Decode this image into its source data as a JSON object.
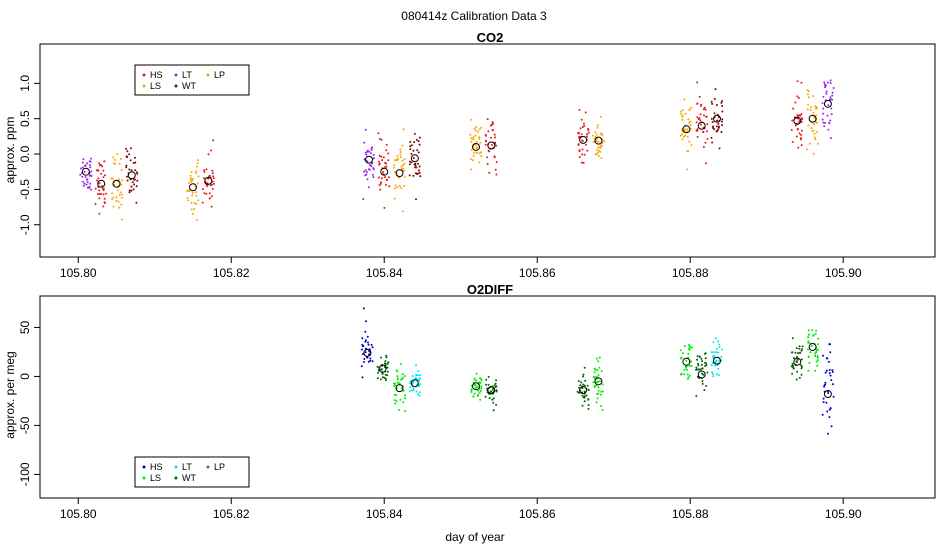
{
  "figure": {
    "title": "080414z   Calibration Data 3",
    "xlabel": "day of year"
  },
  "colors": {
    "HS": "#e41a1c",
    "LS": "#ffa500",
    "LT": "#a020f0",
    "WT": "#8b0000",
    "LP": "#ffa500",
    "O2_HS": "#0000cd",
    "O2_LS": "#00ee00",
    "O2_LT": "#00e5ee",
    "O2_WT": "#006400",
    "O2_LP": "#2e8b57"
  },
  "chart_data": [
    {
      "type": "scatter",
      "title": "CO2",
      "xlabel": "",
      "ylabel": "approx. ppm",
      "xlim": [
        105.795,
        105.912
      ],
      "ylim": [
        -1.4,
        1.5
      ],
      "xticks": [
        "105.80",
        "105.82",
        "105.84",
        "105.86",
        "105.88",
        "105.90"
      ],
      "yticks": [
        "-1.0",
        "-0.5",
        "0.0",
        "0.5",
        "1.0"
      ],
      "legend": {
        "position": "top-left",
        "entries": [
          "HS",
          "LS",
          "LT",
          "WT",
          "LP"
        ]
      },
      "clusters": [
        {
          "series": "LT",
          "x": 105.801,
          "mean": -0.25,
          "sd": 0.18,
          "n": 35
        },
        {
          "series": "HS",
          "x": 105.803,
          "mean": -0.42,
          "sd": 0.22,
          "n": 35
        },
        {
          "series": "LS",
          "x": 105.805,
          "mean": -0.42,
          "sd": 0.28,
          "n": 35
        },
        {
          "series": "WT",
          "x": 105.807,
          "mean": -0.3,
          "sd": 0.22,
          "n": 35
        },
        {
          "series": "LS",
          "x": 105.815,
          "mean": -0.47,
          "sd": 0.25,
          "n": 35
        },
        {
          "series": "HS",
          "x": 105.817,
          "mean": -0.38,
          "sd": 0.25,
          "n": 35
        },
        {
          "series": "LT",
          "x": 105.838,
          "mean": -0.08,
          "sd": 0.2,
          "n": 35
        },
        {
          "series": "HS",
          "x": 105.84,
          "mean": -0.25,
          "sd": 0.25,
          "n": 35
        },
        {
          "series": "LS",
          "x": 105.842,
          "mean": -0.27,
          "sd": 0.28,
          "n": 35
        },
        {
          "series": "WT",
          "x": 105.844,
          "mean": -0.06,
          "sd": 0.25,
          "n": 35
        },
        {
          "series": "LS",
          "x": 105.852,
          "mean": 0.1,
          "sd": 0.22,
          "n": 35
        },
        {
          "series": "HS",
          "x": 105.854,
          "mean": 0.12,
          "sd": 0.2,
          "n": 35
        },
        {
          "series": "HS",
          "x": 105.866,
          "mean": 0.2,
          "sd": 0.22,
          "n": 35
        },
        {
          "series": "LS",
          "x": 105.868,
          "mean": 0.19,
          "sd": 0.22,
          "n": 35
        },
        {
          "series": "LS",
          "x": 105.8795,
          "mean": 0.35,
          "sd": 0.25,
          "n": 35
        },
        {
          "series": "HS",
          "x": 105.8815,
          "mean": 0.4,
          "sd": 0.25,
          "n": 35
        },
        {
          "series": "WT",
          "x": 105.8835,
          "mean": 0.5,
          "sd": 0.22,
          "n": 35
        },
        {
          "series": "HS",
          "x": 105.894,
          "mean": 0.47,
          "sd": 0.28,
          "n": 35
        },
        {
          "series": "LS",
          "x": 105.896,
          "mean": 0.5,
          "sd": 0.3,
          "n": 35
        },
        {
          "series": "LT",
          "x": 105.898,
          "mean": 0.71,
          "sd": 0.25,
          "n": 35
        }
      ]
    },
    {
      "type": "scatter",
      "title": "O2DIFF",
      "xlabel": "day of year",
      "ylabel": "approx. per meg",
      "xlim": [
        105.795,
        105.912
      ],
      "ylim": [
        -120,
        78
      ],
      "xticks": [
        "105.80",
        "105.82",
        "105.84",
        "105.86",
        "105.88",
        "105.90"
      ],
      "yticks": [
        "-100",
        "-50",
        "0",
        "50"
      ],
      "legend": {
        "position": "bottom-left",
        "entries": [
          "HS",
          "LS",
          "LT",
          "WT",
          "LP"
        ]
      },
      "clusters": [
        {
          "series": "O2_HS",
          "x": 105.8378,
          "mean": 24,
          "sd": 18,
          "n": 35
        },
        {
          "series": "O2_WT",
          "x": 105.8398,
          "mean": 8,
          "sd": 7,
          "n": 35
        },
        {
          "series": "O2_LS",
          "x": 105.842,
          "mean": -12,
          "sd": 14,
          "n": 35
        },
        {
          "series": "O2_LT",
          "x": 105.844,
          "mean": -7,
          "sd": 9,
          "n": 35
        },
        {
          "series": "O2_LS",
          "x": 105.852,
          "mean": -10,
          "sd": 10,
          "n": 35
        },
        {
          "series": "O2_WT",
          "x": 105.854,
          "mean": -14,
          "sd": 9,
          "n": 35
        },
        {
          "series": "O2_WT",
          "x": 105.866,
          "mean": -14,
          "sd": 12,
          "n": 35
        },
        {
          "series": "O2_LS",
          "x": 105.868,
          "mean": -5,
          "sd": 14,
          "n": 35
        },
        {
          "series": "O2_LS",
          "x": 105.8795,
          "mean": 15,
          "sd": 16,
          "n": 35
        },
        {
          "series": "O2_WT",
          "x": 105.8815,
          "mean": 2,
          "sd": 15,
          "n": 35
        },
        {
          "series": "O2_LT",
          "x": 105.8835,
          "mean": 16,
          "sd": 13,
          "n": 35
        },
        {
          "series": "O2_WT",
          "x": 105.894,
          "mean": 15,
          "sd": 14,
          "n": 35
        },
        {
          "series": "O2_LS",
          "x": 105.896,
          "mean": 30,
          "sd": 15,
          "n": 35
        },
        {
          "series": "O2_HS",
          "x": 105.898,
          "mean": -18,
          "sd": 28,
          "n": 35
        }
      ]
    }
  ]
}
